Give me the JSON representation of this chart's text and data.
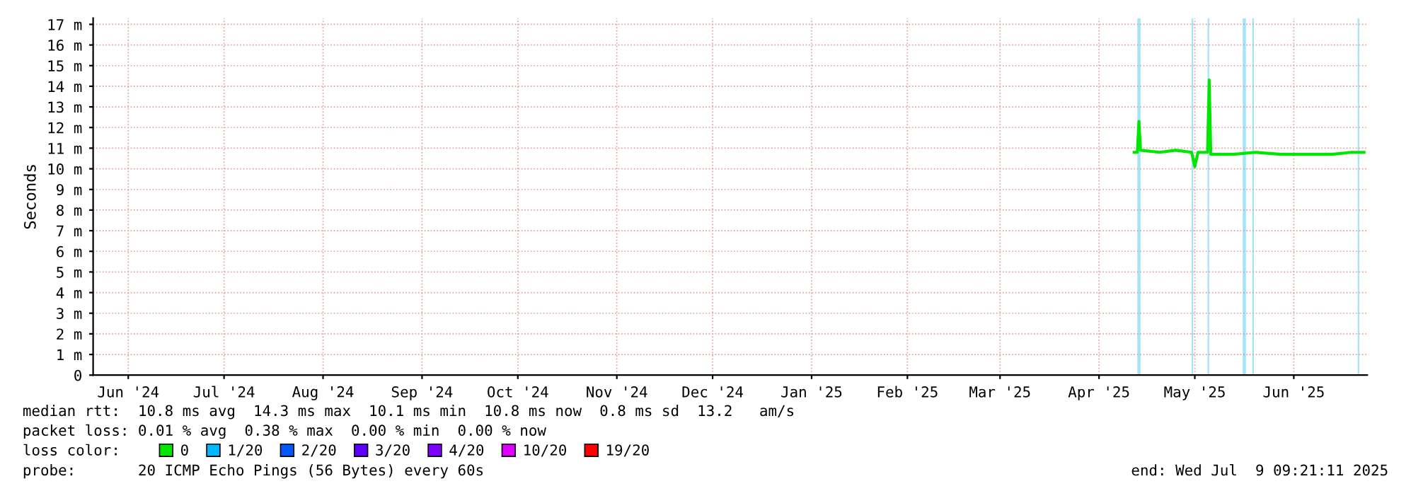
{
  "chart_data": {
    "type": "line",
    "ylabel": "Seconds",
    "x": [
      "2025-04-27",
      "2025-04-28",
      "2025-04-28T12:00",
      "2025-04-29",
      "2025-05-05",
      "2025-05-10",
      "2025-05-15",
      "2025-05-16",
      "2025-05-17",
      "2025-05-20",
      "2025-05-20T12:00",
      "2025-05-21",
      "2025-05-28",
      "2025-06-04",
      "2025-06-12",
      "2025-06-20",
      "2025-06-28",
      "2025-07-04",
      "2025-07-08"
    ],
    "series": [
      {
        "name": "0",
        "color": "#00e600",
        "values": [
          10.8,
          10.8,
          12.3,
          10.9,
          10.8,
          10.9,
          10.8,
          10.1,
          10.8,
          10.8,
          14.3,
          10.7,
          10.7,
          10.8,
          10.7,
          10.7,
          10.7,
          10.8,
          10.8
        ]
      },
      {
        "name": "1/20",
        "color": "#00b8ff",
        "values": [
          null,
          null,
          null,
          null,
          null,
          null,
          null,
          null,
          null,
          null,
          null,
          null,
          null,
          null,
          null,
          null,
          null,
          null,
          null
        ]
      },
      {
        "name": "2/20",
        "color": "#0059ff",
        "values": [
          null,
          null,
          null,
          null,
          null,
          null,
          null,
          null,
          null,
          null,
          null,
          null,
          null,
          null,
          null,
          null,
          null,
          null,
          null
        ]
      },
      {
        "name": "3/20",
        "color": "#5e00ff",
        "values": [
          null,
          null,
          null,
          null,
          null,
          null,
          null,
          null,
          null,
          null,
          null,
          null,
          null,
          null,
          null,
          null,
          null,
          null,
          null
        ]
      },
      {
        "name": "4/20",
        "color": "#7e00ff",
        "values": [
          null,
          null,
          null,
          null,
          null,
          null,
          null,
          null,
          null,
          null,
          null,
          null,
          null,
          null,
          null,
          null,
          null,
          null,
          null
        ]
      },
      {
        "name": "10/20",
        "color": "#dd00ff",
        "values": [
          null,
          null,
          null,
          null,
          null,
          null,
          null,
          null,
          null,
          null,
          null,
          null,
          null,
          null,
          null,
          null,
          null,
          null,
          null
        ]
      },
      {
        "name": "19/20",
        "color": "#ff0000",
        "values": [
          null,
          null,
          null,
          null,
          null,
          null,
          null,
          null,
          null,
          null,
          null,
          null,
          null,
          null,
          null,
          null,
          null,
          null,
          null
        ]
      }
    ],
    "legend_title": "loss color:",
    "legend": "bottom left",
    "xlim": [
      "2024-06-05",
      "2025-07-09"
    ],
    "xticks": [
      {
        "value": "2024-06-16",
        "label": "Jun '24"
      },
      {
        "value": "2024-07-16",
        "label": "Jul '24"
      },
      {
        "value": "2024-08-16",
        "label": "Aug '24"
      },
      {
        "value": "2024-09-16",
        "label": "Sep '24"
      },
      {
        "value": "2024-10-16",
        "label": "Oct '24"
      },
      {
        "value": "2024-11-16",
        "label": "Nov '24"
      },
      {
        "value": "2024-12-16",
        "label": "Dec '24"
      },
      {
        "value": "2025-01-16",
        "label": "Jan '25"
      },
      {
        "value": "2025-02-15",
        "label": "Feb '25"
      },
      {
        "value": "2025-03-16",
        "label": "Mar '25"
      },
      {
        "value": "2025-04-16",
        "label": "Apr '25"
      },
      {
        "value": "2025-05-16",
        "label": "May '25"
      },
      {
        "value": "2025-06-16",
        "label": "Jun '25"
      }
    ],
    "ylim": [
      0,
      17.3
    ],
    "yticks": [
      0,
      {
        "value": 1,
        "label": "1 m"
      },
      {
        "value": 2,
        "label": "2 m"
      },
      {
        "value": 3,
        "label": "3 m"
      },
      {
        "value": 4,
        "label": "4 m"
      },
      {
        "value": 5,
        "label": "5 m"
      },
      {
        "value": 6,
        "label": "6 m"
      },
      {
        "value": 7,
        "label": "7 m"
      },
      {
        "value": 8,
        "label": "8 m"
      },
      {
        "value": 9,
        "label": "9 m"
      },
      {
        "value": 10,
        "label": "10 m"
      },
      {
        "value": 11,
        "label": "11 m"
      },
      {
        "value": 12,
        "label": "12 m"
      },
      {
        "value": 13,
        "label": "13 m"
      },
      {
        "value": 14,
        "label": "14 m"
      },
      {
        "value": 15,
        "label": "15 m"
      },
      {
        "value": 16,
        "label": "16 m"
      },
      {
        "value": 17,
        "label": "17 m"
      }
    ],
    "grid": true,
    "bands": [
      {
        "axis": "x",
        "from": "2025-04-28",
        "to": "2025-04-29",
        "color": "#a6e3f7"
      },
      {
        "axis": "x",
        "from": "2025-05-15",
        "to": "2025-05-15T12:00",
        "color": "#a6e3f7"
      },
      {
        "axis": "x",
        "from": "2025-05-20",
        "to": "2025-05-20T12:00",
        "color": "#a6e3f7"
      },
      {
        "axis": "x",
        "from": "2025-05-31",
        "to": "2025-06-01",
        "color": "#a6e3f7"
      },
      {
        "axis": "x",
        "from": "2025-06-03",
        "to": "2025-06-03T12:00",
        "color": "#a6e3f7"
      },
      {
        "axis": "x",
        "from": "2025-07-06",
        "to": "2025-07-06T12:00",
        "color": "#a6e3f7"
      }
    ],
    "annotations": [
      "median rtt:  10.8 ms avg  14.3 ms max  10.1 ms min  10.8 ms now  0.8 ms sd  13.2   am/s",
      "packet loss: 0.01 % avg  0.38 % max  0.00 % min  0.00 % now",
      "probe:       20 ICMP Echo Pings (56 Bytes) every 60s",
      "end: Wed Jul  9 09:21:11 2025"
    ]
  }
}
